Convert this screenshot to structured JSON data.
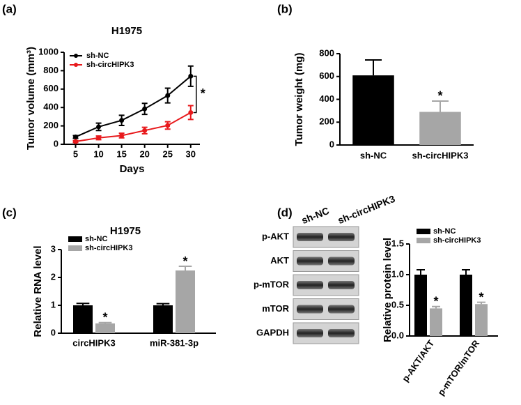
{
  "panel_labels": [
    "(a)",
    "(b)",
    "(c)",
    "(d)"
  ],
  "chart_data": [
    {
      "type": "line",
      "title": "H1975",
      "x_label": "Days",
      "y_label": "Tumor volume (mm³)",
      "x": [
        5,
        10,
        15,
        20,
        25,
        30
      ],
      "xlim": [
        2.5,
        32
      ],
      "xticks": [
        5,
        10,
        15,
        20,
        25,
        30
      ],
      "ylim": [
        0,
        1000
      ],
      "yticks": [
        0,
        200,
        400,
        600,
        800,
        1000
      ],
      "series": [
        {
          "name": "sh-NC",
          "color": "#000000",
          "values": [
            80,
            190,
            260,
            385,
            530,
            740
          ],
          "errors": [
            15,
            40,
            55,
            60,
            80,
            110
          ]
        },
        {
          "name": "sh-circHIPK3",
          "color": "#e8191c",
          "values": [
            30,
            70,
            95,
            150,
            205,
            345
          ],
          "errors": [
            10,
            20,
            25,
            35,
            40,
            75
          ]
        }
      ],
      "annotation": "*"
    },
    {
      "type": "bar",
      "y_label": "Tumor weight (mg)",
      "categories": [
        "sh-NC",
        "sh-circHIPK3"
      ],
      "values": [
        610,
        290
      ],
      "errors": [
        135,
        95
      ],
      "colors": [
        "#000000",
        "#a6a6a6"
      ],
      "annotations": [
        null,
        "*"
      ],
      "ylim": [
        0,
        800
      ],
      "yticks": [
        0,
        200,
        400,
        600,
        800
      ]
    },
    {
      "type": "grouped-bar",
      "title": "H1975",
      "y_label": "Relative RNA level",
      "categories": [
        "circHIPK3",
        "miR-381-3p"
      ],
      "ylim": [
        0,
        3
      ],
      "yticks": [
        0,
        1,
        2,
        3
      ],
      "series": [
        {
          "name": "sh-NC",
          "color": "#000000",
          "values": [
            1.0,
            1.0
          ],
          "errors": [
            0.07,
            0.06
          ]
        },
        {
          "name": "sh-circHIPK3",
          "color": "#a6a6a6",
          "values": [
            0.35,
            2.25
          ],
          "errors": [
            0.03,
            0.15
          ],
          "annotations": [
            "*",
            "*"
          ]
        }
      ]
    },
    {
      "type": "grouped-bar",
      "y_label": "Relative protein level",
      "categories": [
        "p-AKT/AKT",
        "p-mTOR/mTOR"
      ],
      "ylim": [
        0,
        1.5
      ],
      "yticks": [
        {
          "value": 0,
          "label": "0.0"
        },
        0.5,
        {
          "value": 1,
          "label": "1.0"
        },
        1.5
      ],
      "series": [
        {
          "name": "sh-NC",
          "color": "#000000",
          "values": [
            1.0,
            1.0
          ],
          "errors": [
            0.08,
            0.08
          ]
        },
        {
          "name": "sh-circHIPK3",
          "color": "#a6a6a6",
          "values": [
            0.45,
            0.52
          ],
          "errors": [
            0.03,
            0.03
          ],
          "annotations": [
            "*",
            "*"
          ]
        }
      ]
    }
  ],
  "blot": {
    "columns": [
      "sh-NC",
      "sh-circHIPK3"
    ],
    "rows": [
      "p-AKT",
      "AKT",
      "p-mTOR",
      "mTOR",
      "GAPDH"
    ]
  }
}
